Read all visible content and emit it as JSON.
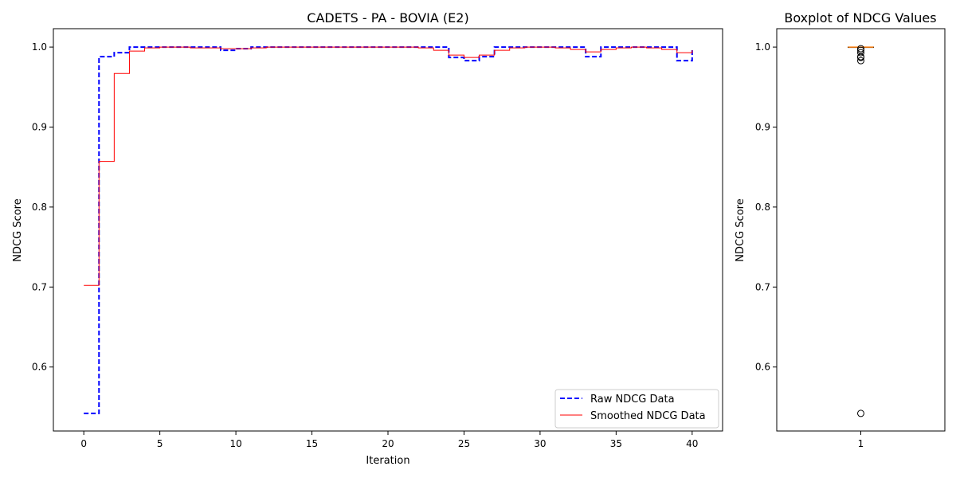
{
  "chart_data": [
    {
      "type": "line",
      "title": "CADETS - PA - BOVIA (E2)",
      "xlabel": "Iteration",
      "ylabel": "NDCG Score",
      "xlim": [
        -2,
        42
      ],
      "ylim": [
        0.52,
        1.023
      ],
      "xticks": [
        0,
        5,
        10,
        15,
        20,
        25,
        30,
        35,
        40
      ],
      "yticks": [
        0.6,
        0.7,
        0.8,
        0.9,
        1.0
      ],
      "ytick_labels": [
        "0.6",
        "0.7",
        "0.8",
        "0.9",
        "1.0"
      ],
      "step": "post",
      "grid": false,
      "legend_position": "bottom-right",
      "x": [
        0,
        1,
        2,
        3,
        4,
        5,
        6,
        7,
        8,
        9,
        10,
        11,
        12,
        13,
        14,
        15,
        16,
        17,
        18,
        19,
        20,
        21,
        22,
        23,
        24,
        25,
        26,
        27,
        28,
        29,
        30,
        31,
        32,
        33,
        34,
        35,
        36,
        37,
        38,
        39,
        40
      ],
      "series": [
        {
          "name": "Raw NDCG Data",
          "color": "#0000ff",
          "style": "dashed",
          "values": [
            0.542,
            0.988,
            0.993,
            1.0,
            1.0,
            1.0,
            1.0,
            1.0,
            1.0,
            0.996,
            0.998,
            1.0,
            1.0,
            1.0,
            1.0,
            1.0,
            1.0,
            1.0,
            1.0,
            1.0,
            1.0,
            1.0,
            1.0,
            1.0,
            0.987,
            0.983,
            0.988,
            1.0,
            1.0,
            1.0,
            1.0,
            1.0,
            1.0,
            0.988,
            1.0,
            1.0,
            1.0,
            1.0,
            1.0,
            0.983,
            0.998
          ]
        },
        {
          "name": "Smoothed NDCG Data",
          "color": "#ff0000",
          "style": "solid",
          "values": [
            0.702,
            0.857,
            0.967,
            0.995,
            0.999,
            1.0,
            1.0,
            0.999,
            0.999,
            0.998,
            0.998,
            0.999,
            1.0,
            1.0,
            1.0,
            1.0,
            1.0,
            1.0,
            1.0,
            1.0,
            1.0,
            1.0,
            0.999,
            0.996,
            0.99,
            0.987,
            0.99,
            0.996,
            0.999,
            1.0,
            1.0,
            0.999,
            0.997,
            0.994,
            0.997,
            0.999,
            1.0,
            0.999,
            0.997,
            0.993,
            0.996
          ]
        }
      ]
    },
    {
      "type": "box",
      "title": "Boxplot of NDCG Values",
      "ylabel": "NDCG Score",
      "categories": [
        "1"
      ],
      "ylim": [
        0.52,
        1.023
      ],
      "yticks": [
        0.6,
        0.7,
        0.8,
        0.9,
        1.0
      ],
      "ytick_labels": [
        "0.6",
        "0.7",
        "0.8",
        "0.9",
        "1.0"
      ],
      "median": 1.0,
      "q1": 1.0,
      "q3": 1.0,
      "whisker_low": 1.0,
      "whisker_high": 1.0,
      "outliers": [
        0.542,
        0.983,
        0.987,
        0.988,
        0.993,
        0.996,
        0.998
      ],
      "median_color": "#ff7f0e"
    }
  ]
}
